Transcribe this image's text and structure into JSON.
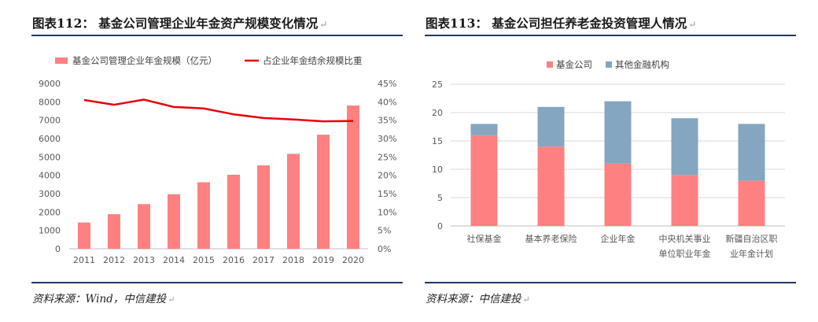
{
  "left": {
    "title": "图表112： 基金公司管理企业年金资产规模变化情况",
    "source": "资料来源：Wind，中信建投",
    "chart_data": {
      "type": "bar+line",
      "categories": [
        "2011",
        "2012",
        "2013",
        "2014",
        "2015",
        "2016",
        "2017",
        "2018",
        "2019",
        "2020"
      ],
      "series": [
        {
          "name": "基金公司管理企业年金规模（亿元）",
          "type": "bar",
          "axis": "left",
          "values": [
            1430,
            1880,
            2430,
            2970,
            3620,
            4030,
            4540,
            5170,
            6210,
            7800
          ]
        },
        {
          "name": "占企业年金结余规模比重",
          "type": "line",
          "axis": "right",
          "values": [
            40.5,
            39.2,
            40.6,
            38.6,
            38.2,
            36.6,
            35.6,
            35.2,
            34.7,
            34.8
          ]
        }
      ],
      "ylim_left": [
        0,
        9000
      ],
      "yticks_left": [
        "0",
        "1000",
        "2000",
        "3000",
        "4000",
        "5000",
        "6000",
        "7000",
        "8000",
        "9000"
      ],
      "ylim_right": [
        0,
        45
      ],
      "yticks_right": [
        "0%",
        "5%",
        "10%",
        "15%",
        "20%",
        "25%",
        "30%",
        "35%",
        "40%",
        "45%"
      ],
      "legend_position": "top",
      "colors": {
        "bar": "#ff8080",
        "line": "#e8000b"
      }
    }
  },
  "right": {
    "title": "图表113： 基金公司担任养老金投资管理人情况",
    "source": "资料来源：中信建投",
    "chart_data": {
      "type": "stacked-bar",
      "categories": [
        [
          "社保基金"
        ],
        [
          "基本养老保险"
        ],
        [
          "企业年金"
        ],
        [
          "中央机关事业",
          "单位职业年金"
        ],
        [
          "新疆自治区职",
          "业年金计划"
        ]
      ],
      "series": [
        {
          "name": "基金公司",
          "values": [
            16,
            14,
            11,
            9,
            8
          ]
        },
        {
          "name": "其他金融机构",
          "values": [
            2,
            7,
            11,
            10,
            10
          ]
        }
      ],
      "ylim": [
        0,
        25
      ],
      "yticks": [
        "0",
        "5",
        "10",
        "15",
        "20",
        "25"
      ],
      "legend_position": "top",
      "colors": {
        "基金公司": "#ff8080",
        "其他金融机构": "#84a6c0"
      }
    }
  },
  "return_mark": "↵"
}
